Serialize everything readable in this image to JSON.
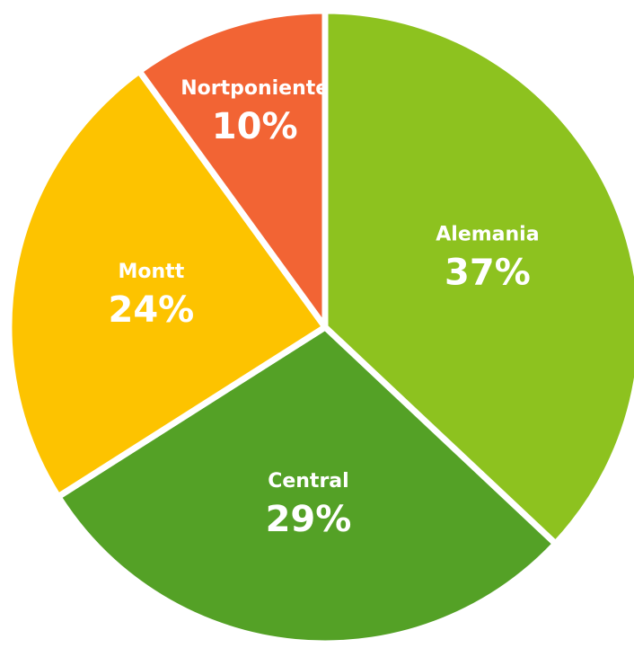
{
  "chart_data": {
    "type": "pie",
    "categories": [
      "Alemania",
      "Central",
      "Montt",
      "Nortponiente"
    ],
    "values": [
      37,
      29,
      24,
      10
    ],
    "value_labels": [
      "37%",
      "29%",
      "24%",
      "10%"
    ],
    "colors": [
      "#8dc21f",
      "#54a126",
      "#fdc300",
      "#f26434"
    ]
  }
}
